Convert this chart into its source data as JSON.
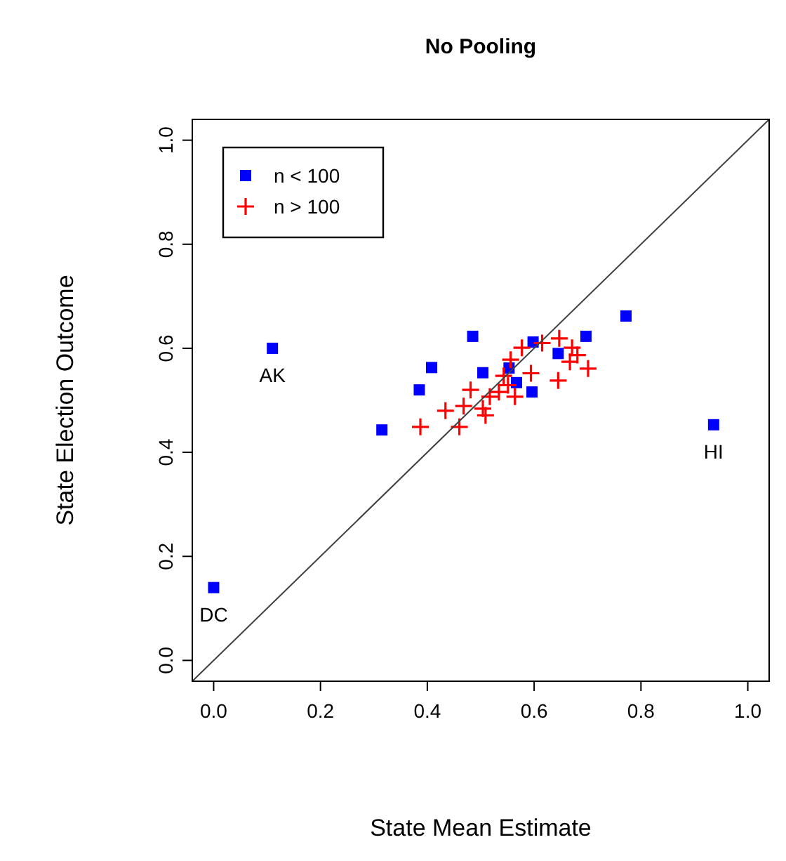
{
  "chart_data": {
    "type": "scatter",
    "title": "No Pooling",
    "xlabel": "State Mean Estimate",
    "ylabel": "State Election Outcome",
    "xlim": [
      -0.04,
      1.04
    ],
    "ylim": [
      -0.04,
      1.04
    ],
    "xticks": [
      {
        "value": 0,
        "label": "0.0"
      },
      0.2,
      0.4,
      0.6,
      0.8,
      {
        "value": 1,
        "label": "1.0"
      }
    ],
    "yticks": [
      {
        "value": 0,
        "label": "0.0"
      },
      0.2,
      0.4,
      0.6,
      0.8,
      {
        "value": 1,
        "label": "1.0"
      }
    ],
    "grid": false,
    "legend": "top left",
    "series": [
      {
        "name": "n < 100",
        "color": "#0000ff",
        "marker": "square",
        "x": [
          0.0,
          0.11,
          0.315,
          0.385,
          0.408,
          0.485,
          0.504,
          0.553,
          0.567,
          0.596,
          0.598,
          0.645,
          0.697,
          0.772,
          0.936
        ],
        "values": [
          0.14,
          0.6,
          0.443,
          0.52,
          0.563,
          0.623,
          0.553,
          0.562,
          0.534,
          0.516,
          0.612,
          0.59,
          0.623,
          0.662,
          0.453
        ]
      },
      {
        "name": "n > 100",
        "color": "#ff0000",
        "marker": "cross",
        "x": [
          0.387,
          0.434,
          0.46,
          0.468,
          0.481,
          0.509,
          0.517,
          0.534,
          0.543,
          0.556,
          0.564,
          0.577,
          0.594,
          0.615,
          0.647,
          0.671,
          0.667,
          0.681,
          0.701,
          0.645,
          0.504,
          0.551
        ],
        "values": [
          0.449,
          0.48,
          0.449,
          0.489,
          0.52,
          0.471,
          0.507,
          0.516,
          0.547,
          0.578,
          0.507,
          0.601,
          0.552,
          0.61,
          0.619,
          0.601,
          0.574,
          0.587,
          0.561,
          0.538,
          0.484,
          0.529
        ]
      },
      {
        "type": "line",
        "color": "#404040",
        "x": [
          -0.04,
          1.04
        ],
        "values": [
          -0.04,
          1.04
        ]
      }
    ],
    "annotations": [
      {
        "text": "AK",
        "x": 0.11,
        "y": 0.6
      },
      {
        "text": "HI",
        "x": 0.936,
        "y": 0.453
      },
      {
        "text": "DC",
        "x": 0.0,
        "y": 0.14
      }
    ]
  }
}
